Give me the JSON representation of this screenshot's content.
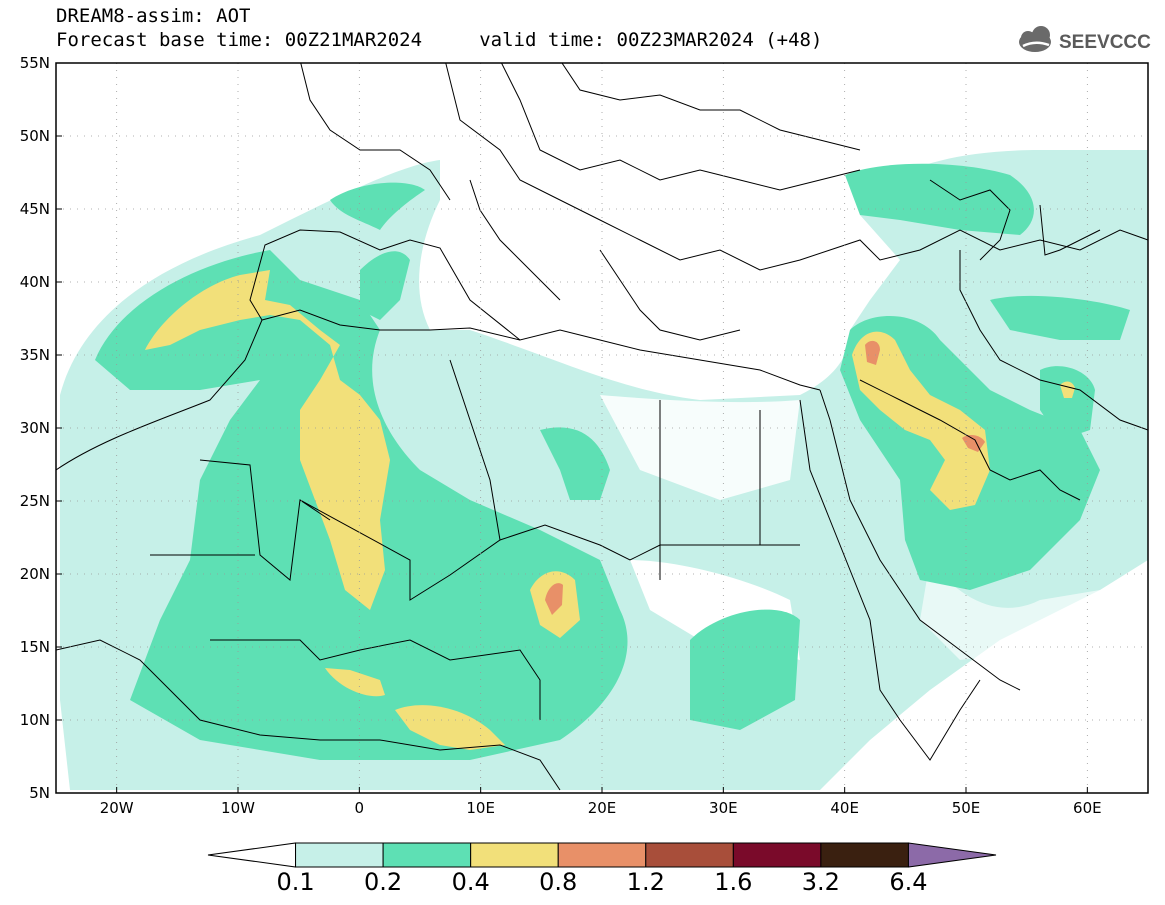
{
  "header": {
    "title_line1": "DREAM8-assim: AOT",
    "title_line2": "Forecast base time: 00Z21MAR2024     valid time: 00Z23MAR2024 (+48)"
  },
  "logo": {
    "text": "SEEVCCC",
    "icon": "cloud-icon"
  },
  "map": {
    "lon_range": [
      -25,
      65
    ],
    "lat_range": [
      5,
      55
    ],
    "lat_ticks": [
      {
        "value": 55,
        "label": "55N"
      },
      {
        "value": 50,
        "label": "50N"
      },
      {
        "value": 45,
        "label": "45N"
      },
      {
        "value": 40,
        "label": "40N"
      },
      {
        "value": 35,
        "label": "35N"
      },
      {
        "value": 30,
        "label": "30N"
      },
      {
        "value": 25,
        "label": "25N"
      },
      {
        "value": 20,
        "label": "20N"
      },
      {
        "value": 15,
        "label": "15N"
      },
      {
        "value": 10,
        "label": "10N"
      },
      {
        "value": 5,
        "label": "5N"
      }
    ],
    "lon_ticks": [
      {
        "value": -20,
        "label": "20W"
      },
      {
        "value": -10,
        "label": "10W"
      },
      {
        "value": 0,
        "label": "0"
      },
      {
        "value": 10,
        "label": "10E"
      },
      {
        "value": 20,
        "label": "20E"
      },
      {
        "value": 30,
        "label": "30E"
      },
      {
        "value": 40,
        "label": "40E"
      },
      {
        "value": 50,
        "label": "50E"
      },
      {
        "value": 60,
        "label": "60E"
      }
    ],
    "grid": "dotted"
  },
  "colorbar": {
    "levels": [
      "0.1",
      "0.2",
      "0.4",
      "0.8",
      "1.2",
      "1.6",
      "3.2",
      "6.4"
    ],
    "colors": [
      "#ffffff",
      "#c6f0e8",
      "#5ee0b4",
      "#f2e07a",
      "#e89068",
      "#a84e3a",
      "#7a0a2a",
      "#3a2010",
      "#8c6aa8"
    ]
  }
}
